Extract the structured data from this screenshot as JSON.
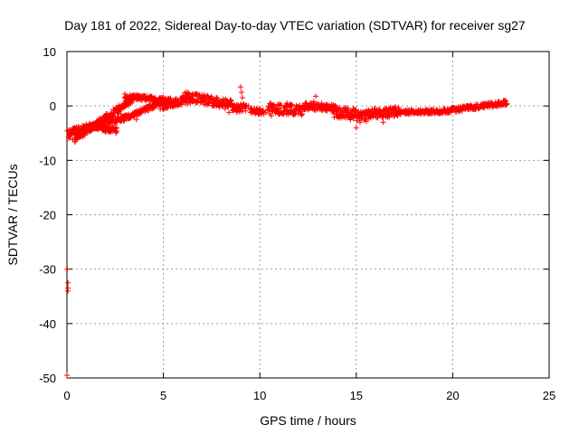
{
  "chart_data": {
    "type": "scatter",
    "title": "Day 181 of 2022, Sidereal Day-to-day VTEC variation (SDTVAR) for receiver sg27",
    "xlabel": "GPS time / hours",
    "ylabel": "SDTVAR / TECUs",
    "xlim": [
      0,
      25
    ],
    "ylim": [
      -50,
      10
    ],
    "xticks": [
      0,
      5,
      10,
      15,
      20,
      25
    ],
    "yticks": [
      -50,
      -40,
      -30,
      -20,
      -10,
      0,
      10
    ],
    "grid": true,
    "marker": "+",
    "series": [
      {
        "name": "SDTVAR",
        "color": "#ff0000",
        "points": [
          [
            0.0,
            -49.5
          ],
          [
            0.02,
            -30.0
          ],
          [
            0.05,
            -32.5
          ],
          [
            0.05,
            -33.5
          ],
          [
            0.05,
            -34.0
          ],
          [
            0.1,
            -6.0
          ],
          [
            0.2,
            -5.0
          ],
          [
            0.3,
            -6.2
          ],
          [
            0.4,
            -4.0
          ],
          [
            0.5,
            -5.5
          ],
          [
            0.6,
            -3.8
          ],
          [
            0.8,
            -4.5
          ],
          [
            1.0,
            -3.5
          ],
          [
            1.2,
            -4.2
          ],
          [
            1.5,
            -3.8
          ],
          [
            1.8,
            -4.0
          ],
          [
            2.0,
            -4.8
          ],
          [
            2.2,
            -3.5
          ],
          [
            2.5,
            -2.0
          ],
          [
            2.8,
            -1.5
          ],
          [
            3.0,
            -2.2
          ],
          [
            3.3,
            -1.8
          ],
          [
            3.6,
            -2.5
          ],
          [
            3.0,
            0.5
          ],
          [
            3.3,
            1.5
          ],
          [
            3.6,
            2.0
          ],
          [
            4.0,
            1.8
          ],
          [
            4.4,
            1.6
          ],
          [
            4.8,
            1.2
          ],
          [
            5.2,
            0.8
          ],
          [
            5.6,
            1.2
          ],
          [
            6.0,
            1.5
          ],
          [
            6.5,
            1.8
          ],
          [
            7.0,
            2.0
          ],
          [
            7.5,
            1.5
          ],
          [
            7.8,
            1.0
          ],
          [
            8.0,
            0.5
          ],
          [
            8.2,
            -0.5
          ],
          [
            8.4,
            -1.2
          ],
          [
            8.6,
            -0.3
          ],
          [
            8.8,
            0.2
          ],
          [
            9.0,
            3.5
          ],
          [
            9.05,
            2.5
          ],
          [
            9.1,
            1.5
          ],
          [
            9.4,
            0.0
          ],
          [
            9.7,
            -1.0
          ],
          [
            10.0,
            -0.5
          ],
          [
            10.3,
            -1.2
          ],
          [
            10.6,
            -1.8
          ],
          [
            11.0,
            -0.5
          ],
          [
            11.4,
            0.5
          ],
          [
            11.8,
            -0.8
          ],
          [
            12.2,
            -1.5
          ],
          [
            12.6,
            -0.2
          ],
          [
            12.8,
            0.8
          ],
          [
            12.9,
            1.8
          ],
          [
            13.2,
            0.5
          ],
          [
            13.5,
            -0.5
          ],
          [
            13.8,
            0.2
          ],
          [
            14.0,
            -1.0
          ],
          [
            14.3,
            -2.0
          ],
          [
            14.6,
            -1.2
          ],
          [
            14.9,
            -1.8
          ],
          [
            15.0,
            -4.0
          ],
          [
            15.2,
            -3.0
          ],
          [
            15.5,
            -1.5
          ],
          [
            15.8,
            -1.0
          ],
          [
            16.1,
            -2.2
          ],
          [
            16.4,
            -3.0
          ],
          [
            16.7,
            -1.2
          ],
          [
            17.0,
            -0.8
          ],
          [
            17.3,
            -1.5
          ],
          [
            17.6,
            -0.9
          ],
          [
            18.0,
            -1.3
          ],
          [
            18.4,
            -1.0
          ],
          [
            18.8,
            -1.4
          ],
          [
            19.2,
            -0.8
          ],
          [
            19.6,
            -1.0
          ],
          [
            20.0,
            -0.5
          ],
          [
            20.4,
            -0.2
          ],
          [
            20.8,
            0.0
          ],
          [
            21.2,
            0.3
          ],
          [
            21.6,
            0.1
          ],
          [
            22.0,
            0.5
          ],
          [
            22.4,
            0.8
          ],
          [
            22.7,
            1.0
          ],
          [
            22.8,
            0.3
          ]
        ],
        "segments": [
          {
            "x": [
              0.05,
              1.3
            ],
            "y_start": -5.0,
            "y_end": -3.8,
            "spread": 1.4
          },
          {
            "x": [
              1.3,
              2.6
            ],
            "y_start": -3.8,
            "y_end": -4.5,
            "spread": 1.0
          },
          {
            "x": [
              0.4,
              3.4
            ],
            "y_start": -6.0,
            "y_end": 1.2,
            "spread": 1.3
          },
          {
            "x": [
              1.5,
              3.2
            ],
            "y_start": -3.5,
            "y_end": -2.0,
            "spread": 1.0
          },
          {
            "x": [
              3.0,
              5.4
            ],
            "y_start": 1.8,
            "y_end": 1.0,
            "spread": 0.9
          },
          {
            "x": [
              3.2,
              5.0
            ],
            "y_start": -2.0,
            "y_end": 0.8,
            "spread": 1.0
          },
          {
            "x": [
              4.8,
              6.4
            ],
            "y_start": 0.0,
            "y_end": 1.2,
            "spread": 1.5
          },
          {
            "x": [
              6.0,
              8.6
            ],
            "y_start": 1.8,
            "y_end": 0.2,
            "spread": 1.8
          },
          {
            "x": [
              8.6,
              9.3
            ],
            "y_start": -0.5,
            "y_end": -0.3,
            "spread": 1.4
          },
          {
            "x": [
              9.5,
              10.2
            ],
            "y_start": -0.8,
            "y_end": -1.2,
            "spread": 1.0
          },
          {
            "x": [
              10.4,
              12.2
            ],
            "y_start": -0.5,
            "y_end": -0.8,
            "spread": 2.0
          },
          {
            "x": [
              12.2,
              14.0
            ],
            "y_start": 0.0,
            "y_end": -0.4,
            "spread": 1.3
          },
          {
            "x": [
              13.8,
              15.6
            ],
            "y_start": -1.0,
            "y_end": -2.0,
            "spread": 2.2
          },
          {
            "x": [
              15.6,
              17.2
            ],
            "y_start": -1.5,
            "y_end": -1.0,
            "spread": 1.8
          },
          {
            "x": [
              17.0,
              19.4
            ],
            "y_start": -1.2,
            "y_end": -1.0,
            "spread": 0.8
          },
          {
            "x": [
              19.4,
              22.8
            ],
            "y_start": -1.0,
            "y_end": 0.6,
            "spread": 0.9
          }
        ]
      }
    ]
  }
}
